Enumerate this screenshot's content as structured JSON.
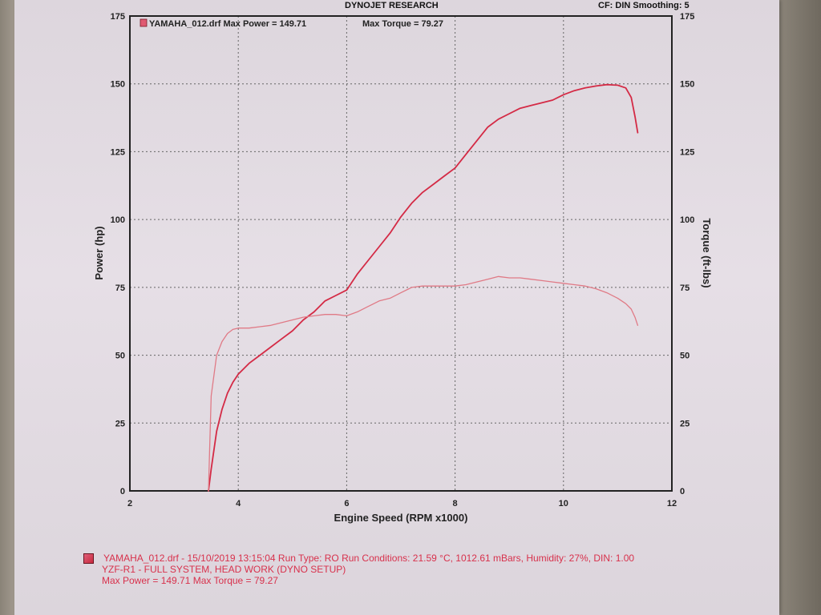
{
  "header": {
    "title": "DYNOJET RESEARCH",
    "cf": "CF: DIN  Smoothing: 5"
  },
  "legend": {
    "run_label": "YAMAHA_012.drf Max Power = 149.71",
    "torque_label": "Max Torque = 79.27"
  },
  "footer": {
    "line1": "YAMAHA_012.drf - 15/10/2019 13:15:04  Run Type: RO  Run Conditions: 21.59 °C, 1012.61 mBars,  Humidity:  27%, DIN: 1.00",
    "line2": "YZF-R1 - FULL SYSTEM, HEAD WORK (DYNO  SETUP)",
    "line3": "Max Power = 149.71  Max Torque = 79.27"
  },
  "colors": {
    "power": "#d42a45",
    "torque": "#e07a86",
    "grid": "#666666",
    "axis": "#222222"
  },
  "chart_data": {
    "type": "line",
    "xlabel": "Engine Speed (RPM x1000)",
    "ylabel": "Power (hp)",
    "y2label": "Torque (ft-lbs)",
    "xlim": [
      2,
      12
    ],
    "ylim": [
      0,
      175
    ],
    "y2lim": [
      0,
      175
    ],
    "xticks": [
      "2",
      "4",
      "6",
      "8",
      "10",
      "12"
    ],
    "yticks": [
      "0",
      "25",
      "50",
      "75",
      "100",
      "125",
      "150",
      "175"
    ],
    "y2ticks": [
      "0",
      "25",
      "50",
      "75",
      "100",
      "125",
      "150",
      "175"
    ],
    "grid": true,
    "series": [
      {
        "name": "Power",
        "axis": "left",
        "x": [
          3.45,
          3.5,
          3.6,
          3.7,
          3.8,
          3.9,
          4.0,
          4.2,
          4.4,
          4.6,
          4.8,
          5.0,
          5.2,
          5.4,
          5.6,
          5.8,
          6.0,
          6.2,
          6.4,
          6.6,
          6.8,
          7.0,
          7.2,
          7.4,
          7.6,
          7.8,
          8.0,
          8.2,
          8.4,
          8.6,
          8.8,
          9.0,
          9.2,
          9.4,
          9.6,
          9.8,
          10.0,
          10.2,
          10.4,
          10.6,
          10.8,
          11.0,
          11.15,
          11.25,
          11.32,
          11.37
        ],
        "y": [
          0,
          8,
          22,
          30,
          36,
          40,
          43,
          47,
          50,
          53,
          56,
          59,
          63,
          66,
          70,
          72,
          74,
          80,
          85,
          90,
          95,
          101,
          106,
          110,
          113,
          116,
          119,
          124,
          129,
          134,
          137,
          139,
          141,
          142,
          143,
          144,
          146,
          147.5,
          148.5,
          149.2,
          149.7,
          149.5,
          148.5,
          145,
          138,
          132
        ]
      },
      {
        "name": "Torque",
        "axis": "right",
        "x": [
          3.45,
          3.5,
          3.6,
          3.7,
          3.8,
          3.9,
          4.0,
          4.2,
          4.4,
          4.6,
          4.8,
          5.0,
          5.2,
          5.4,
          5.6,
          5.8,
          6.0,
          6.2,
          6.4,
          6.6,
          6.8,
          7.0,
          7.2,
          7.4,
          7.6,
          7.8,
          8.0,
          8.2,
          8.4,
          8.6,
          8.8,
          9.0,
          9.2,
          9.4,
          9.6,
          9.8,
          10.0,
          10.2,
          10.4,
          10.6,
          10.8,
          11.0,
          11.15,
          11.25,
          11.32,
          11.37
        ],
        "y": [
          0,
          35,
          50,
          55,
          58,
          59.5,
          60,
          60,
          60.5,
          61,
          62,
          63,
          64,
          64.5,
          65,
          65,
          64.5,
          66,
          68,
          70,
          71,
          73,
          75,
          75.5,
          75.5,
          75.5,
          75.5,
          76,
          77,
          78,
          79,
          78.5,
          78.5,
          78,
          77.5,
          77,
          76.5,
          76,
          75.5,
          74.5,
          73,
          71,
          69,
          67,
          64,
          61
        ]
      }
    ]
  }
}
